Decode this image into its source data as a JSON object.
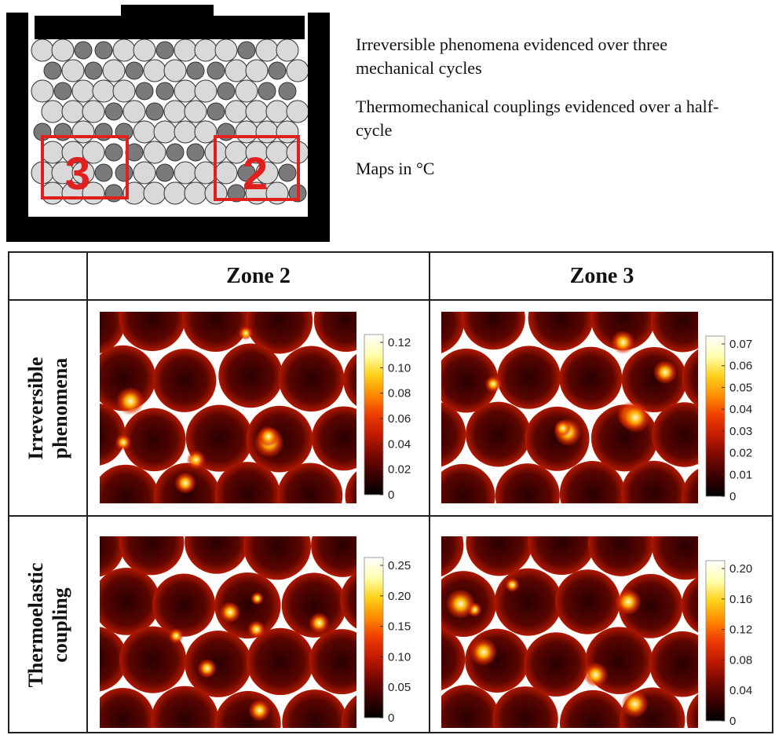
{
  "schematic": {
    "zone_labels": [
      "3",
      "2"
    ],
    "box_color": "#e01f1f",
    "frame_color": "#000000",
    "grain_light": "#d9d9d9",
    "grain_dark": "#7a7a7a"
  },
  "notes": [
    "Irreversible phenomena  evidenced over three mechanical cycles",
    "Thermomechanical couplings evidenced over a half-cycle",
    "Maps in °C"
  ],
  "table": {
    "columns": [
      "Zone 2",
      "Zone 3"
    ],
    "rows": [
      {
        "label_lines": [
          "Irreversible",
          "phenomena"
        ]
      },
      {
        "label_lines": [
          "Thermoelastic",
          "coupling"
        ]
      }
    ]
  },
  "maps": [
    {
      "name": "zone2-irreversible",
      "ticks": [
        "0.12",
        "0.10",
        "0.08",
        "0.06",
        "0.04",
        "0.02",
        "0"
      ]
    },
    {
      "name": "zone3-irreversible",
      "ticks": [
        "0.07",
        "0.06",
        "0.05",
        "0.04",
        "0.03",
        "0.02",
        "0.01",
        "0"
      ]
    },
    {
      "name": "zone2-thermoelastic",
      "ticks": [
        "0.25",
        "0.20",
        "0.15",
        "0.10",
        "0.05",
        "0"
      ]
    },
    {
      "name": "zone3-thermoelastic",
      "ticks": [
        "0.20",
        "0.16",
        "0.12",
        "0.08",
        "0.04",
        "0"
      ]
    }
  ],
  "colormap": [
    "#000000",
    "#3a0000",
    "#7a0800",
    "#c01a00",
    "#ee3c00",
    "#ff8a00",
    "#ffd21a",
    "#ffffb0",
    "#ffffff"
  ]
}
